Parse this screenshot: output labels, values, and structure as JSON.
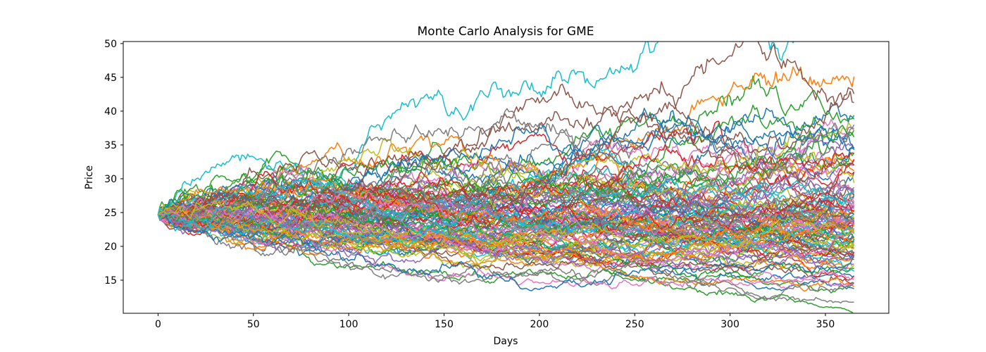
{
  "figure": {
    "background": "#ffffff"
  },
  "chart_data": {
    "type": "line",
    "title": "Monte Carlo Analysis for GME",
    "xlabel": "Days",
    "ylabel": "Price",
    "xlim": [
      -18.25,
      383.25
    ],
    "ylim": [
      10.1,
      50.3
    ],
    "x_ticks": [
      0,
      50,
      100,
      150,
      200,
      250,
      300,
      350
    ],
    "y_ticks": [
      15,
      20,
      25,
      30,
      35,
      40,
      45,
      50
    ],
    "grid": false,
    "legend": "none",
    "series_generator": {
      "model": "geometric_brownian_motion",
      "num_simulations": 120,
      "days": 365,
      "start_price": 24.7,
      "daily_drift": 0.0,
      "daily_volatility": 0.0145,
      "seed": 1337
    },
    "observed_envelope": {
      "start_price": 24.7,
      "mid_peak_price": 48.5,
      "mid_peak_day": 229,
      "final_max_price": 47.0,
      "final_min_price": 12.5
    },
    "palette": [
      "#1f77b4",
      "#ff7f0e",
      "#2ca02c",
      "#d62728",
      "#9467bd",
      "#8c564b",
      "#e377c2",
      "#7f7f7f",
      "#bcbd22",
      "#17becf"
    ],
    "line_width": 1.5,
    "axis_color": "#000000",
    "text_color": "#000000"
  }
}
